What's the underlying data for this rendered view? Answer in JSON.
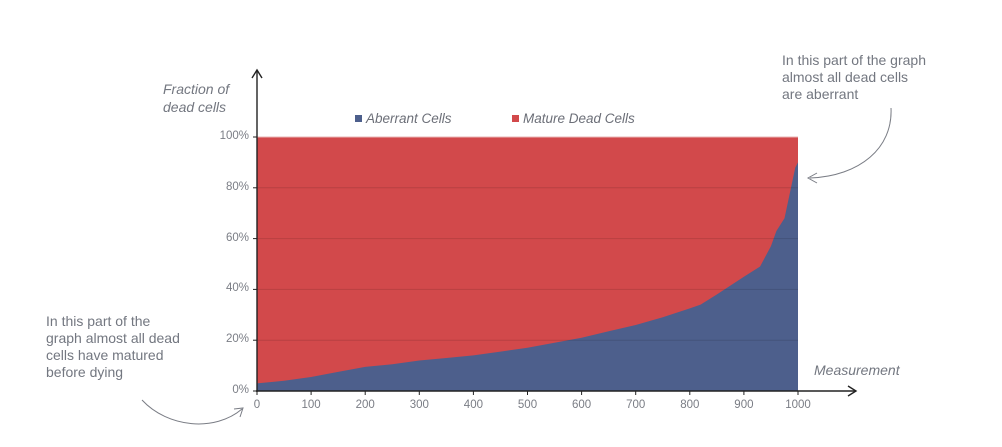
{
  "chart_data": {
    "type": "area",
    "stacked": true,
    "normalized_percent": true,
    "title": "",
    "xlabel": "Measurement",
    "ylabel": "Fraction of\ndead cells",
    "xlim": [
      0,
      1000
    ],
    "ylim": [
      0,
      100
    ],
    "x_ticks": [
      "0",
      "100",
      "200",
      "300",
      "400",
      "500",
      "600",
      "700",
      "800",
      "900",
      "1000"
    ],
    "y_ticks": [
      "0%",
      "20%",
      "40%",
      "60%",
      "80%",
      "100%"
    ],
    "grid": "horizontal",
    "legend_position": "top",
    "x": [
      0,
      50,
      100,
      150,
      200,
      250,
      300,
      350,
      400,
      450,
      500,
      550,
      600,
      650,
      700,
      750,
      800,
      820,
      850,
      900,
      930,
      950,
      960,
      975,
      985,
      995,
      1000
    ],
    "series": [
      {
        "name": "Aberrant Cells",
        "color": "#4d5f8c",
        "values": [
          3,
          4,
          5.5,
          7.5,
          9.5,
          10.5,
          12,
          13,
          14,
          15.5,
          17,
          19,
          21,
          23.5,
          26,
          29,
          32.5,
          34,
          38,
          45,
          49,
          57,
          63,
          68,
          78,
          88,
          90
        ]
      },
      {
        "name": "Mature Dead Cells",
        "color": "#d2494b",
        "values": [
          97,
          96,
          94.5,
          92.5,
          90.5,
          89.5,
          88,
          87,
          86,
          84.5,
          83,
          81,
          79,
          76.5,
          74,
          71,
          67.5,
          66,
          62,
          55,
          51,
          43,
          37,
          32,
          22,
          12,
          10
        ]
      }
    ],
    "annotations": [
      {
        "text": "In this part of the graph\nalmost all dead cells\nare aberrant",
        "points_to": "x≈1000, y≈85%"
      },
      {
        "text": "In this part of the\ngraph almost all dead\ncells have matured\nbefore dying",
        "points_to": "x≈0, y≈0%"
      }
    ]
  },
  "axis": {
    "ylabel": "Fraction of\ndead cells",
    "xlabel": "Measurement"
  },
  "legend": {
    "items": [
      {
        "label": "Aberrant Cells",
        "color": "#4d5f8c"
      },
      {
        "label": "Mature Dead Cells",
        "color": "#d2494b"
      }
    ]
  },
  "annotations": {
    "top_right": "In this part of the graph\nalmost all dead cells\nare aberrant",
    "bottom_left": "In this part of the\ngraph almost all dead\ncells have matured\nbefore dying"
  }
}
